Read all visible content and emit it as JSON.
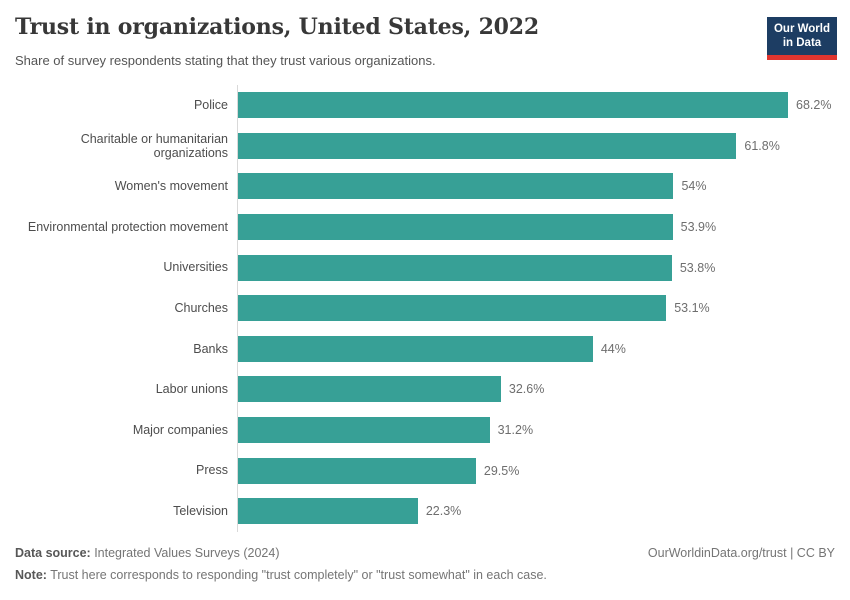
{
  "header": {
    "title": "Trust in organizations, United States, 2022",
    "subtitle": "Share of survey respondents stating that they trust various organizations.",
    "logo": {
      "line1": "Our World",
      "line2": "in Data",
      "bg_color": "#1d3d63",
      "accent_color": "#e0352f"
    }
  },
  "chart_data": {
    "type": "bar",
    "orientation": "horizontal",
    "title": "Trust in organizations, United States, 2022",
    "xlabel": "",
    "ylabel": "",
    "xlim": [
      0,
      68.2
    ],
    "grid": false,
    "legend": false,
    "bar_color": "#37a096",
    "axis_line_color": "#d9d9d9",
    "categories": [
      "Police",
      "Charitable or humanitarian organizations",
      "Women's movement",
      "Environmental protection movement",
      "Universities",
      "Churches",
      "Banks",
      "Labor unions",
      "Major companies",
      "Press",
      "Television"
    ],
    "values": [
      68.2,
      61.8,
      54,
      53.9,
      53.8,
      53.1,
      44,
      32.6,
      31.2,
      29.5,
      22.3
    ],
    "value_labels": [
      "68.2%",
      "61.8%",
      "54%",
      "53.9%",
      "53.8%",
      "53.1%",
      "44%",
      "32.6%",
      "31.2%",
      "29.5%",
      "22.3%"
    ]
  },
  "footer": {
    "datasource_label": "Data source:",
    "datasource_value": " Integrated Values Surveys (2024)",
    "note_label": "Note:",
    "note_value": " Trust here corresponds to responding \"trust completely\" or \"trust somewhat\" in each case.",
    "citation": "OurWorldinData.org/trust | CC BY"
  }
}
